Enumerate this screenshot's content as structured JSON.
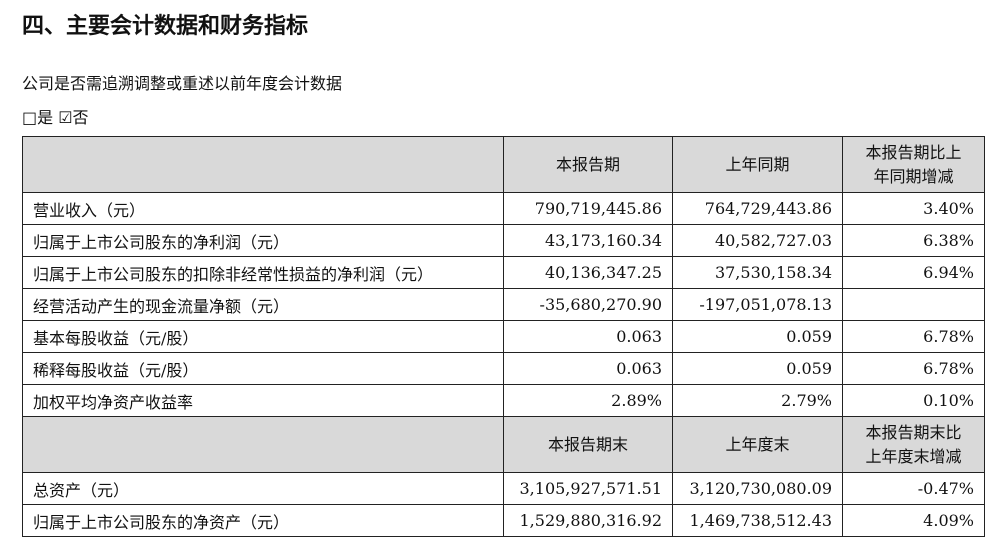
{
  "header": {
    "title": "四、主要会计数据和财务指标"
  },
  "question": "公司是否需追溯调整或重述以前年度会计数据",
  "options": "□是 ☑否",
  "table": {
    "header1": [
      "本报告期",
      "上年同期",
      "本报告期比上年同期增减"
    ],
    "rows1": [
      [
        "营业收入（元）",
        "790,719,445.86",
        "764,729,443.86",
        "3.40%"
      ],
      [
        "归属于上市公司股东的净利润（元）",
        "43,173,160.34",
        "40,582,727.03",
        "6.38%"
      ],
      [
        "归属于上市公司股东的扣除非经常性损益的净利润（元）",
        "40,136,347.25",
        "37,530,158.34",
        "6.94%"
      ],
      [
        "经营活动产生的现金流量净额（元）",
        "-35,680,270.90",
        "-197,051,078.13"
      ],
      [
        "基本每股收益（元/股）",
        "0.063",
        "0.059",
        "6.78%"
      ],
      [
        "稀释每股收益（元/股）",
        "0.063",
        "0.059",
        "6.78%"
      ],
      [
        "加权平均净资产收益率",
        "2.89%",
        "2.79%",
        "0.10%"
      ]
    ],
    "header2": [
      "本报告期末",
      "上年度末",
      "本报告期末比上年度末增减"
    ],
    "rows2": [
      [
        "总资产（元）",
        "3,105,927,571.51",
        "3,120,730,080.09",
        "-0.47%"
      ],
      [
        "归属于上市公司股东的净资产（元）",
        "1,529,880,316.92",
        "1,469,738,512.43",
        "4.09%"
      ]
    ]
  }
}
